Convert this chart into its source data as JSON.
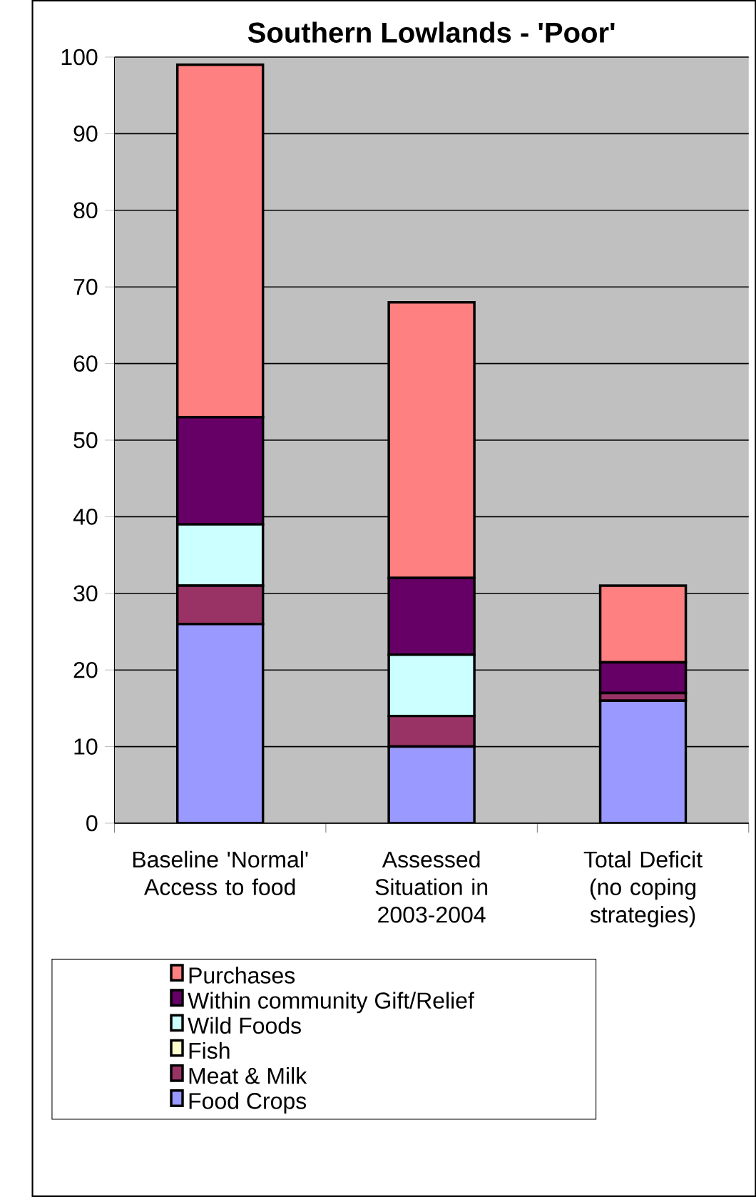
{
  "chart_data": {
    "type": "bar",
    "stacked": true,
    "title": "Southern Lowlands - 'Poor'",
    "categories": [
      "Baseline 'Normal' Access to food",
      "Assessed Situation in 2003-2004",
      "Total Deficit (no coping strategies)"
    ],
    "series": [
      {
        "name": "Food Crops",
        "color": "#9999ff",
        "values": [
          26,
          10,
          16
        ]
      },
      {
        "name": "Meat & Milk",
        "color": "#993366",
        "values": [
          5,
          4,
          1
        ]
      },
      {
        "name": "Fish",
        "color": "#ffffcc",
        "values": [
          0,
          0,
          0
        ]
      },
      {
        "name": "Wild Foods",
        "color": "#ccffff",
        "values": [
          8,
          8,
          0
        ]
      },
      {
        "name": "Within community Gift/Relief",
        "color": "#660066",
        "values": [
          14,
          10,
          4
        ]
      },
      {
        "name": "Purchases",
        "color": "#ff8080",
        "values": [
          46,
          36,
          10
        ]
      }
    ],
    "ylim": [
      0,
      100
    ],
    "yticks": [
      0,
      10,
      20,
      30,
      40,
      50,
      60,
      70,
      80,
      90,
      100
    ],
    "grid": "y",
    "legend": "bottom"
  }
}
